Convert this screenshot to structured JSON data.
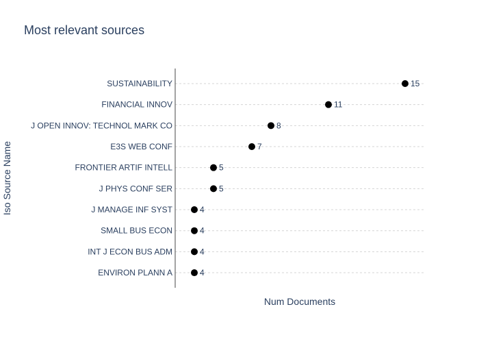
{
  "chart_data": {
    "type": "scatter",
    "title": "Most relevant sources",
    "xlabel": "Num Documents",
    "ylabel": "Iso Source Name",
    "categories": [
      "SUSTAINABILITY",
      "FINANCIAL INNOV",
      "J OPEN INNOV: TECHNOL MARK CO",
      "E3S WEB CONF",
      "FRONTIER ARTIF INTELL",
      "J PHYS CONF SER",
      "J MANAGE INF SYST",
      "SMALL BUS ECON",
      "INT J ECON BUS ADM",
      "ENVIRON PLANN A"
    ],
    "values": [
      15,
      11,
      8,
      7,
      5,
      5,
      4,
      4,
      4,
      4
    ],
    "xlim": [
      3,
      16
    ],
    "grid": "horizontal dashed",
    "marker_color": "#000000"
  }
}
